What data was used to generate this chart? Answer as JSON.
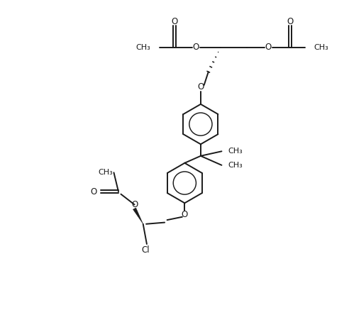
{
  "background": "#ffffff",
  "line_color": "#1a1a1a",
  "line_width": 1.4,
  "font_size": 8.5,
  "figsize": [
    4.92,
    4.37
  ],
  "dpi": 100,
  "xlim": [
    0,
    10
  ],
  "ylim": [
    0,
    10
  ]
}
